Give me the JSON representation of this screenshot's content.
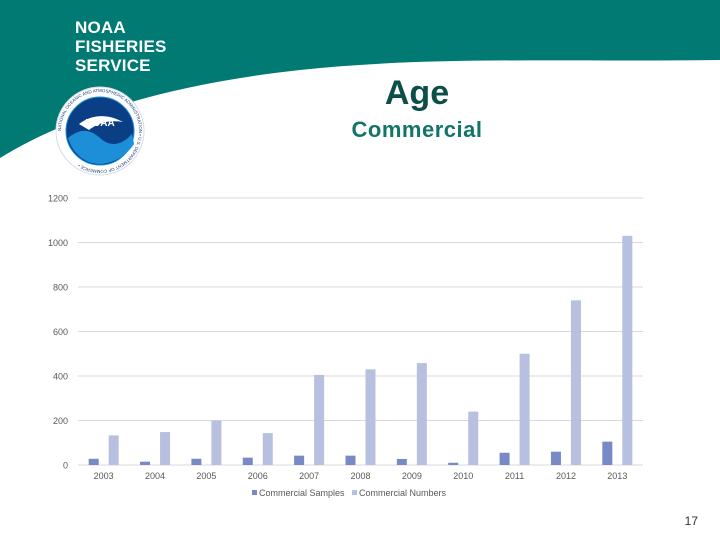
{
  "brand": {
    "line1": "NOAA",
    "line2": "FISHERIES",
    "line3": "SERVICE",
    "logo_text": "NOAA",
    "seal_text": "NATIONAL OCEANIC AND ATMOSPHERIC ADMINISTRATION • U.S. DEPARTMENT OF COMMERCE •"
  },
  "slide": {
    "title": "Age",
    "subtitle": "Commercial",
    "page_number": "17"
  },
  "colors": {
    "banner": "#007a73",
    "samples": "#7889c6",
    "numbers": "#b7c0de",
    "grid": "#d9d9d9"
  },
  "chart_data": {
    "type": "bar",
    "title": "",
    "xlabel": "",
    "ylabel": "",
    "ylim": [
      0,
      1200
    ],
    "yticks": [
      0,
      200,
      400,
      600,
      800,
      1000,
      1200
    ],
    "categories": [
      "2003",
      "2004",
      "2005",
      "2006",
      "2007",
      "2008",
      "2009",
      "2010",
      "2011",
      "2012",
      "2013"
    ],
    "series": [
      {
        "name": "Commercial Samples",
        "values": [
          28,
          15,
          28,
          33,
          42,
          42,
          27,
          10,
          55,
          60,
          105
        ]
      },
      {
        "name": "Commercial Numbers",
        "values": [
          133,
          148,
          200,
          143,
          405,
          430,
          458,
          240,
          500,
          740,
          1030
        ]
      }
    ],
    "legend_position": "bottom-center",
    "grid": true
  }
}
